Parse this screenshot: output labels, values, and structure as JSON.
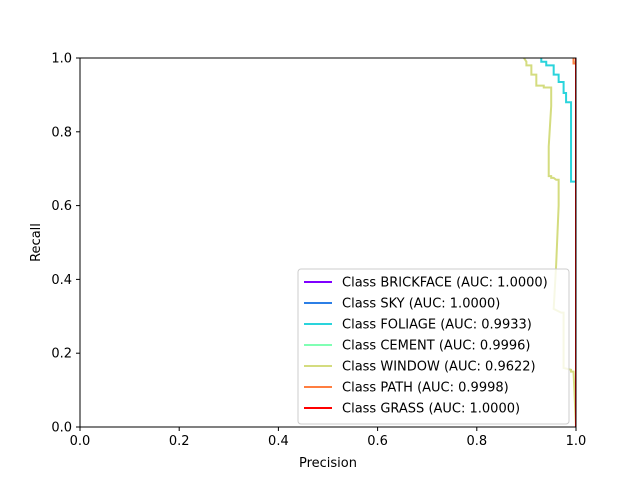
{
  "chart_data": {
    "type": "line",
    "title": "",
    "xlabel": "Precision",
    "ylabel": "Recall",
    "xlim": [
      0.0,
      1.0
    ],
    "ylim": [
      0.0,
      1.0
    ],
    "xticks": [
      "0.0",
      "0.2",
      "0.4",
      "0.6",
      "0.8",
      "1.0"
    ],
    "yticks": [
      "0.0",
      "0.2",
      "0.4",
      "0.6",
      "0.8",
      "1.0"
    ],
    "grid": false,
    "legend_position": "lower-right",
    "series": [
      {
        "name": "Class BRICKFACE (AUC: 1.0000)",
        "color": "#7f00ff",
        "x": [
          1.0,
          1.0
        ],
        "y": [
          0.0,
          1.0
        ]
      },
      {
        "name": "Class SKY (AUC: 1.0000)",
        "color": "#2c7fe6",
        "x": [
          1.0,
          1.0
        ],
        "y": [
          0.0,
          1.0
        ]
      },
      {
        "name": "Class FOLIAGE (AUC: 0.9933)",
        "color": "#2ad4dc",
        "x": [
          0.93,
          0.93,
          0.94,
          0.94,
          0.955,
          0.955,
          0.965,
          0.965,
          0.975,
          0.975,
          0.98,
          0.98,
          0.99,
          0.99,
          1.0,
          1.0
        ],
        "y": [
          1.0,
          0.99,
          0.99,
          0.98,
          0.98,
          0.955,
          0.955,
          0.935,
          0.935,
          0.905,
          0.905,
          0.88,
          0.88,
          0.665,
          0.665,
          0.0
        ]
      },
      {
        "name": "Class CEMENT (AUC: 0.9996)",
        "color": "#80ffb4",
        "x": [
          0.995,
          0.995,
          1.0,
          1.0
        ],
        "y": [
          1.0,
          0.99,
          0.99,
          0.0
        ]
      },
      {
        "name": "Class WINDOW (AUC: 0.9622)",
        "color": "#d4dc7f",
        "x": [
          0.895,
          0.9,
          0.9,
          0.91,
          0.91,
          0.92,
          0.92,
          0.935,
          0.935,
          0.95,
          0.95,
          0.945,
          0.945,
          0.95,
          0.95,
          0.955,
          0.96,
          0.965,
          0.965,
          0.96,
          0.955,
          0.97,
          0.975,
          0.975,
          0.99,
          0.99,
          0.995,
          1.0
        ],
        "y": [
          1.0,
          0.99,
          0.98,
          0.98,
          0.955,
          0.955,
          0.925,
          0.925,
          0.92,
          0.92,
          0.87,
          0.76,
          0.68,
          0.68,
          0.675,
          0.675,
          0.67,
          0.67,
          0.6,
          0.44,
          0.32,
          0.31,
          0.31,
          0.16,
          0.155,
          0.15,
          0.15,
          0.0
        ]
      },
      {
        "name": "Class PATH (AUC: 0.9998)",
        "color": "#ff7e40",
        "x": [
          0.995,
          0.995,
          1.0,
          1.0
        ],
        "y": [
          1.0,
          0.985,
          0.985,
          0.0
        ]
      },
      {
        "name": "Class GRASS (AUC: 1.0000)",
        "color": "#ff0000",
        "x": [
          1.0,
          1.0
        ],
        "y": [
          0.0,
          1.0
        ]
      }
    ]
  }
}
